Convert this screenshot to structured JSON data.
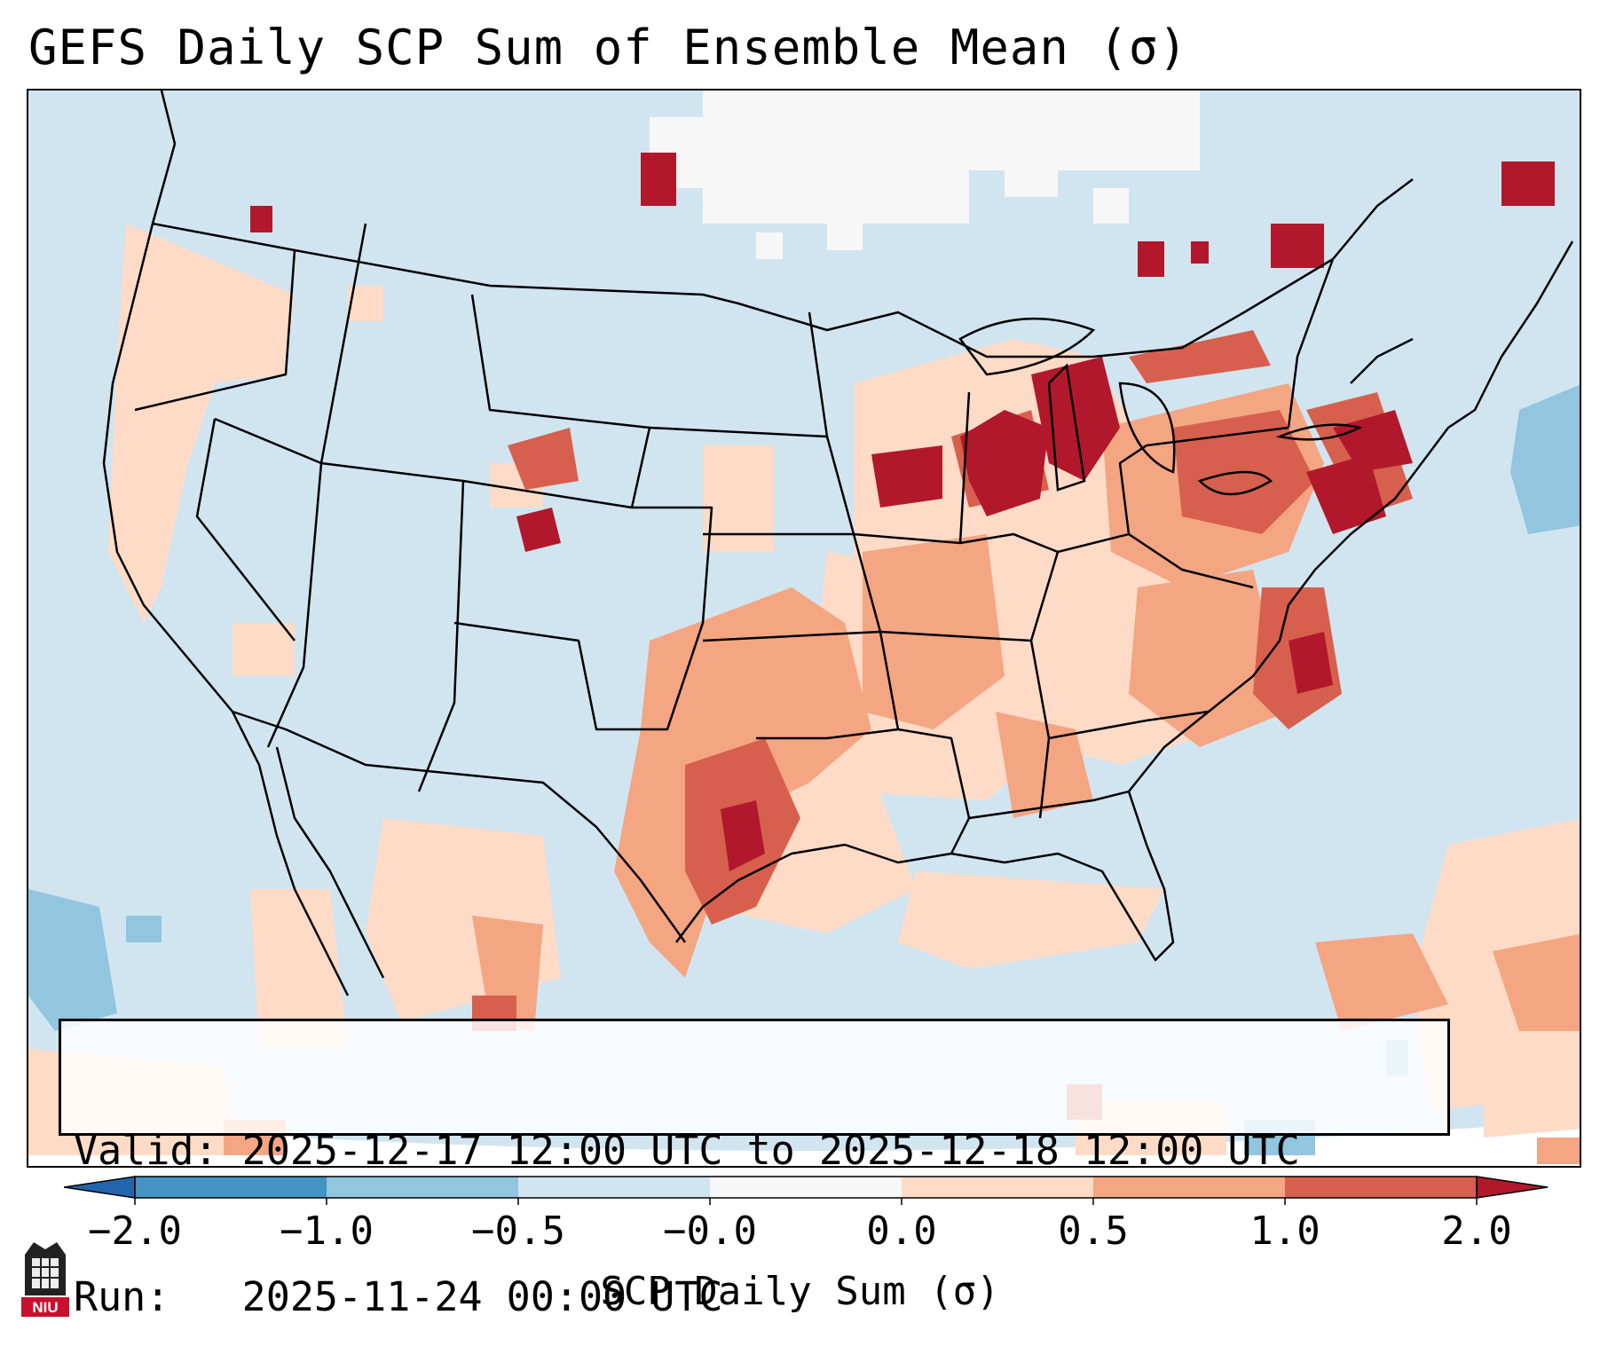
{
  "title": "GEFS Daily SCP Sum of Ensemble Mean (σ)",
  "info": {
    "valid_line": "Valid: 2025-12-17 12:00 UTC to 2025-12-18 12:00 UTC",
    "run_line": "Run:   2025-11-24 00:00 UTC"
  },
  "colorbar": {
    "label": "SCP Daily Sum (σ)",
    "ticks": [
      "−2.0",
      "−1.0",
      "−0.5",
      "−0.0",
      "0.0",
      "0.5",
      "1.0",
      "2.0"
    ],
    "bins": [
      {
        "range": "< -2.0",
        "color": "#2166ac"
      },
      {
        "range": "-2.0 to -1.0",
        "color": "#4393c3"
      },
      {
        "range": "-1.0 to -0.5",
        "color": "#92c5de"
      },
      {
        "range": "-0.5 to -0.0",
        "color": "#d1e5f0"
      },
      {
        "range": "-0.0 to 0.0",
        "color": "#f7f7f7"
      },
      {
        "range": "0.0 to 0.5",
        "color": "#fddbc7"
      },
      {
        "range": "0.5 to 1.0",
        "color": "#f4a582"
      },
      {
        "range": "1.0 to 2.0",
        "color": "#d6604d"
      },
      {
        "range": "> 2.0",
        "color": "#b2182b"
      }
    ]
  },
  "map": {
    "projection": "Lambert conformal, CONUS",
    "background_color": "#d1e5f0",
    "features": [
      "coastlines",
      "state-borders",
      "country-borders"
    ],
    "highlights": [
      {
        "area": "Upper Midwest / Great Lakes",
        "level": "> 2.0"
      },
      {
        "area": "Pennsylvania / New York",
        "level": "> 2.0"
      },
      {
        "area": "North Texas / Oklahoma",
        "level": "1.0 to 2.0"
      },
      {
        "area": "Virginia / Carolinas",
        "level": "1.0 to 2.0"
      },
      {
        "area": "Gulf Coast / Southeast",
        "level": "0.0 to 0.5"
      },
      {
        "area": "Northern Plains / Canada",
        "level": "-0.0 to 0.0"
      },
      {
        "area": "Atlantic east of New England",
        "level": "-1.0 to -0.5"
      }
    ]
  },
  "logo": {
    "text": "NIU",
    "color": "#c8102e"
  }
}
